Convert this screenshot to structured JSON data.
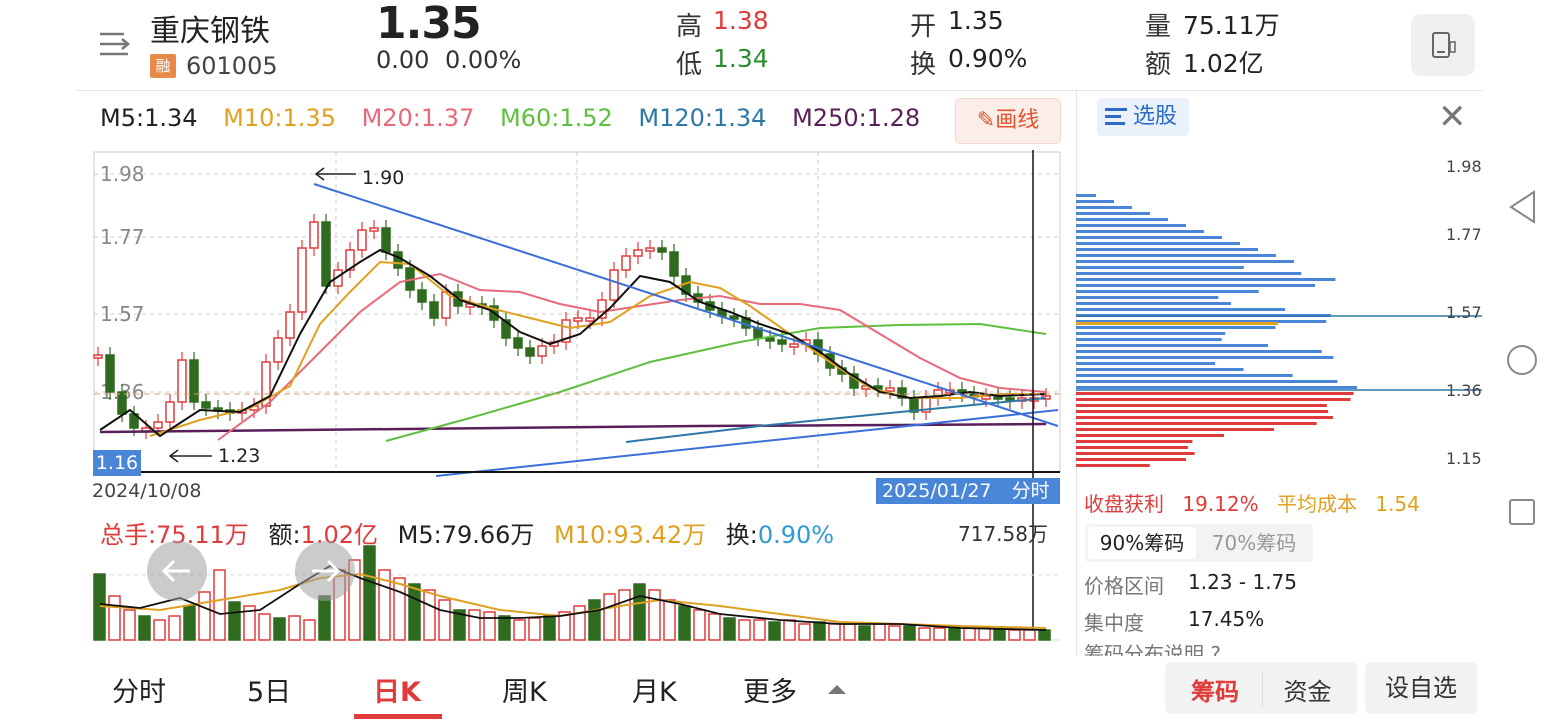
{
  "header": {
    "name": "重庆钢铁",
    "badge": "融",
    "code": "601005",
    "price": "1.35",
    "change": "0.00",
    "change_pct": "0.00%",
    "high_label": "高",
    "high": "1.38",
    "low_label": "低",
    "low": "1.34",
    "open_label": "开",
    "open": "1.35",
    "turnover_label": "换",
    "turnover": "0.90%",
    "volume_label": "量",
    "volume": "75.11万",
    "amount_label": "额",
    "amount": "1.02亿"
  },
  "ma_legend": {
    "m5": "M5:1.34",
    "m10": "M10:1.35",
    "m20": "M20:1.37",
    "m60": "M60:1.52",
    "m120": "M120:1.34",
    "m250": "M250:1.28"
  },
  "draw_button": "画线",
  "kline": {
    "y_ticks": [
      "1.98",
      "1.77",
      "1.57",
      "1.36"
    ],
    "current_price_tag": "1.16",
    "high_annotation": "1.90",
    "low_annotation": "1.23",
    "date_start": "2024/10/08",
    "date_end": "2025/01/27",
    "time_overlay": "分时 >"
  },
  "volume": {
    "total_label": "总手:",
    "total": "75.11万",
    "amount_label": "额:",
    "amount": "1.02亿",
    "m5": "M5:79.66万",
    "m10": "M10:93.42万",
    "turn_label": "换:",
    "turn": "0.90%",
    "max": "717.58万"
  },
  "chips": {
    "select_label": "选股",
    "ticks": [
      "1.98",
      "1.77",
      "1.57",
      "1.36",
      "1.15"
    ],
    "profit_label": "收盘获利",
    "profit": "19.12%",
    "avg_label": "平均成本",
    "avg": "1.54",
    "seg_90": "90%筹码",
    "seg_70": "70%筹码",
    "range_label": "价格区间",
    "range": "1.23 - 1.75",
    "conc_label": "集中度",
    "conc": "17.45%",
    "explain": "筹码分布说明 ?"
  },
  "tabs": {
    "t1": "分时",
    "t2": "5日",
    "t3": "日K",
    "t4": "周K",
    "t5": "月K",
    "t6": "更多"
  },
  "actions": {
    "chips": "筹码",
    "funds": "资金",
    "watch": "设自选"
  },
  "colors": {
    "up": "#e03b3b",
    "down": "#2e6b1f",
    "accent": "#4a86d8"
  }
}
